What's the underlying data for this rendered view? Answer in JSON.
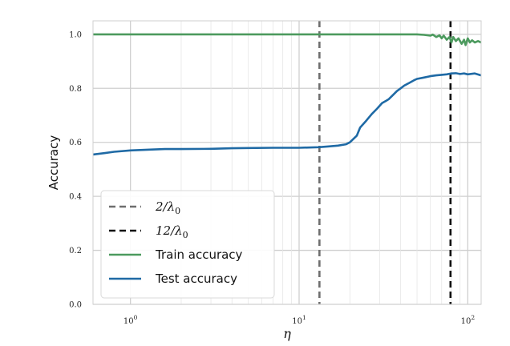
{
  "chart_data": {
    "type": "line",
    "xlabel": "η",
    "ylabel": "Accuracy",
    "xscale": "log",
    "xlim": [
      0.6,
      120
    ],
    "ylim": [
      0.0,
      1.05
    ],
    "grid": true,
    "legend_position": "lower-left",
    "x_ticks": [
      {
        "value": 1,
        "base": "10",
        "exp": "0"
      },
      {
        "value": 10,
        "base": "10",
        "exp": "1"
      },
      {
        "value": 100,
        "base": "10",
        "exp": "2"
      }
    ],
    "y_ticks": [
      {
        "value": 0.0,
        "label": "0.0"
      },
      {
        "value": 0.2,
        "label": "0.2"
      },
      {
        "value": 0.4,
        "label": "0.4"
      },
      {
        "value": 0.6,
        "label": "0.6"
      },
      {
        "value": 0.8,
        "label": "0.8"
      },
      {
        "value": 1.0,
        "label": "1.0"
      }
    ],
    "vlines": [
      {
        "name": "2/λ0",
        "x": 13.2,
        "color": "#6e6e6e",
        "style": "dashed",
        "legend_main": "2/λ",
        "legend_sub": "0"
      },
      {
        "name": "12/λ0",
        "x": 79,
        "color": "#111111",
        "style": "dashed",
        "legend_main": "12/λ",
        "legend_sub": "0"
      }
    ],
    "series": [
      {
        "name": "Train accuracy",
        "color": "#4c9a5e",
        "x": [
          0.6,
          1,
          2,
          5,
          10,
          20,
          40,
          50,
          55,
          60,
          62,
          65,
          68,
          70,
          72,
          75,
          78,
          80,
          82,
          85,
          88,
          90,
          92,
          95,
          97,
          100,
          103,
          106,
          110,
          115,
          120
        ],
        "y": [
          1.0,
          1.0,
          1.0,
          1.0,
          1.0,
          1.0,
          1.0,
          1.0,
          0.998,
          0.995,
          0.999,
          0.99,
          0.996,
          0.985,
          0.995,
          0.98,
          0.99,
          0.97,
          0.99,
          0.975,
          0.985,
          0.975,
          0.965,
          0.98,
          0.96,
          0.985,
          0.97,
          0.978,
          0.97,
          0.975,
          0.97
        ]
      },
      {
        "name": "Test accuracy",
        "color": "#1f6aa5",
        "x": [
          0.6,
          0.7,
          0.8,
          1,
          1.3,
          1.6,
          2,
          3,
          4,
          5,
          7,
          10,
          13,
          15,
          17,
          19,
          20,
          22,
          23,
          25,
          27,
          29,
          31,
          33,
          34,
          36,
          38,
          40,
          42,
          45,
          48,
          50,
          55,
          60,
          65,
          70,
          75,
          80,
          85,
          90,
          95,
          100,
          110,
          120
        ],
        "y": [
          0.555,
          0.56,
          0.565,
          0.57,
          0.573,
          0.575,
          0.575,
          0.576,
          0.578,
          0.579,
          0.58,
          0.58,
          0.582,
          0.585,
          0.588,
          0.593,
          0.6,
          0.625,
          0.655,
          0.68,
          0.705,
          0.725,
          0.745,
          0.755,
          0.76,
          0.775,
          0.79,
          0.8,
          0.81,
          0.82,
          0.83,
          0.835,
          0.84,
          0.845,
          0.848,
          0.85,
          0.852,
          0.855,
          0.856,
          0.853,
          0.855,
          0.852,
          0.855,
          0.848
        ]
      }
    ]
  }
}
